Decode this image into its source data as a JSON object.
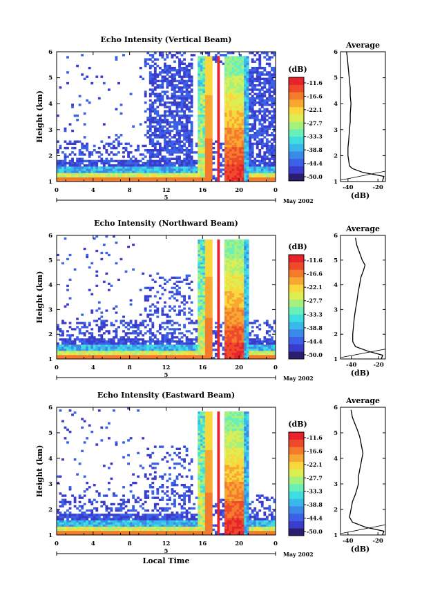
{
  "chart_data": [
    {
      "type": "heatmap",
      "title": "Echo Intensity (Vertical Beam)",
      "ylabel": "Height (km)",
      "xlabel": "",
      "x_ticks": [
        "0",
        "4",
        "8",
        "12",
        "16",
        "20",
        "0"
      ],
      "y_ticks": [
        "1",
        "2",
        "3",
        "4",
        "5",
        "6"
      ],
      "xlim": [
        0,
        24
      ],
      "ylim": [
        1,
        6
      ],
      "date_label": "5",
      "date_right": "May 2002",
      "colorbar": {
        "unit": "(dB)",
        "ticks": [
          "-11.6",
          "-16.6",
          "-22.1",
          "-27.7",
          "-33.3",
          "-38.8",
          "-44.4",
          "-50.0"
        ]
      },
      "profile": {
        "title": "Average",
        "xlabel": "(dB)",
        "x_ticks": [
          "-40",
          "-20"
        ],
        "xlim": [
          -45,
          -15
        ],
        "height": [
          1.0,
          1.2,
          1.35,
          1.5,
          1.6,
          1.8,
          2.0,
          2.3,
          2.6,
          3.0,
          3.3,
          3.6,
          4.0,
          4.3,
          4.6,
          4.9,
          5.2,
          5.5,
          5.8,
          6.0
        ],
        "value": [
          -17,
          -16,
          -30,
          -37,
          -39,
          -39.5,
          -40,
          -40,
          -39.5,
          -39,
          -38.5,
          -38.5,
          -38,
          -38.5,
          -38.5,
          -39,
          -39.5,
          -40,
          -40.5,
          -41
        ]
      }
    },
    {
      "type": "heatmap",
      "title": "Echo Intensity (Northward Beam)",
      "ylabel": "Height (km)",
      "xlabel": "",
      "x_ticks": [
        "0",
        "4",
        "8",
        "12",
        "16",
        "20",
        "0"
      ],
      "y_ticks": [
        "1",
        "2",
        "3",
        "4",
        "5",
        "6"
      ],
      "xlim": [
        0,
        24
      ],
      "ylim": [
        1,
        6
      ],
      "date_label": "5",
      "date_right": "May 2002",
      "colorbar": {
        "unit": "(dB)",
        "ticks": [
          "-11.6",
          "-16.6",
          "-22.1",
          "-27.7",
          "-33.3",
          "-38.8",
          "-44.4",
          "-50.0"
        ]
      },
      "profile": {
        "title": "Average",
        "xlabel": "(dB)",
        "x_ticks": [
          "-40",
          "-20"
        ],
        "xlim": [
          -48,
          -15
        ],
        "height": [
          1.0,
          1.15,
          1.3,
          1.5,
          1.7,
          2.0,
          2.3,
          2.6,
          3.0,
          3.3,
          3.7,
          4.0,
          4.3,
          4.6,
          4.8,
          5.0,
          5.3,
          5.6,
          5.9
        ],
        "value": [
          -18,
          -17,
          -27,
          -37,
          -39,
          -39,
          -38.5,
          -38,
          -37,
          -36,
          -35,
          -34,
          -33,
          -31,
          -30,
          -32,
          -34,
          -36,
          -37
        ]
      }
    },
    {
      "type": "heatmap",
      "title": "Echo Intensity (Eastward Beam)",
      "ylabel": "Height (km)",
      "xlabel": "Local Time",
      "x_ticks": [
        "0",
        "4",
        "8",
        "12",
        "16",
        "20",
        "0"
      ],
      "y_ticks": [
        "1",
        "2",
        "3",
        "4",
        "5",
        "6"
      ],
      "xlim": [
        0,
        24
      ],
      "ylim": [
        1,
        6
      ],
      "date_label": "5",
      "date_right": "May 2002",
      "colorbar": {
        "unit": "(dB)",
        "ticks": [
          "-11.6",
          "-16.6",
          "-22.1",
          "-27.7",
          "-33.3",
          "-38.8",
          "-44.4",
          "-50.0"
        ]
      },
      "profile": {
        "title": "Average",
        "xlabel": "(dB)",
        "x_ticks": [
          "-40",
          "-20"
        ],
        "xlim": [
          -45,
          -15
        ],
        "height": [
          1.0,
          1.15,
          1.3,
          1.5,
          1.7,
          2.0,
          2.3,
          2.6,
          3.0,
          3.3,
          3.6,
          3.9,
          4.2,
          4.5,
          4.8,
          5.0,
          5.3,
          5.6,
          5.9
        ],
        "value": [
          -17,
          -16,
          -28,
          -37,
          -39,
          -38,
          -37,
          -35,
          -33,
          -33,
          -32,
          -31,
          -30,
          -31,
          -32,
          -33,
          -35,
          -37,
          -38
        ]
      }
    }
  ],
  "colors": [
    "#2a1e6e",
    "#3a3ccc",
    "#3b62e6",
    "#3c8ae8",
    "#39b8ec",
    "#3fdde0",
    "#69f0b8",
    "#a6f07c",
    "#dcee52",
    "#f8d83c",
    "#f8a832",
    "#f47a2c",
    "#ee4a2a",
    "#e8222a"
  ]
}
